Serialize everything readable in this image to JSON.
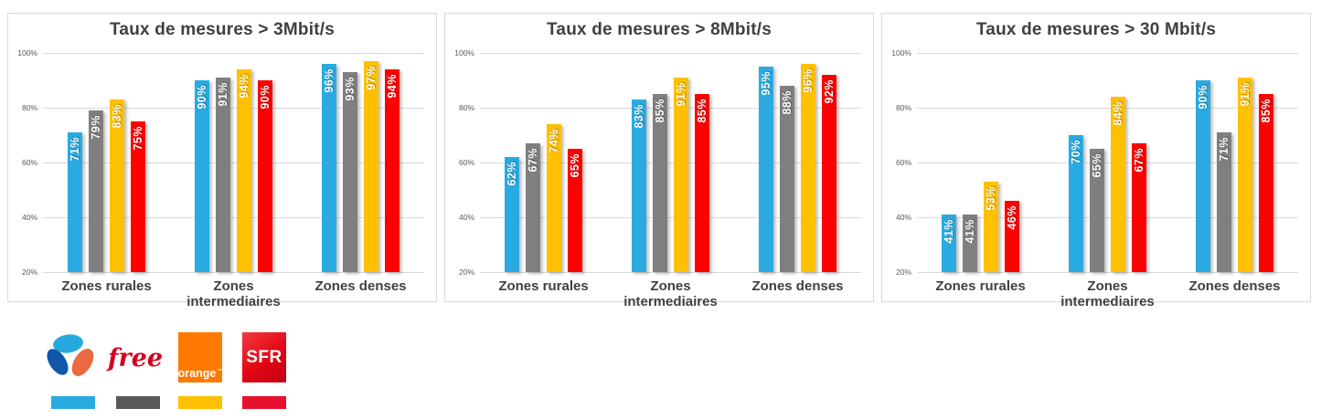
{
  "chart_data": [
    {
      "type": "bar",
      "title": "Taux de mesures > 3Mbit/s",
      "categories": [
        "Zones rurales",
        "Zones intermediaires",
        "Zones denses"
      ],
      "series": [
        {
          "name": "Bouygues Telecom",
          "color": "#29ABE2",
          "values": [
            71,
            90,
            96
          ]
        },
        {
          "name": "Free",
          "color": "#7F7F7F",
          "values": [
            79,
            91,
            93
          ]
        },
        {
          "name": "Orange",
          "color": "#FFC000",
          "values": [
            83,
            94,
            97
          ]
        },
        {
          "name": "SFR",
          "color": "#FE0000",
          "values": [
            75,
            90,
            94
          ]
        }
      ],
      "ylim": [
        20,
        100
      ],
      "y_ticks": [
        "100%",
        "80%",
        "60%",
        "40%",
        "20%"
      ],
      "grid": true,
      "data_label_format": "{value}%",
      "data_label_style": "white bold, rotated up, inside end"
    },
    {
      "type": "bar",
      "title": "Taux de mesures > 8Mbit/s",
      "categories": [
        "Zones rurales",
        "Zones intermediaires",
        "Zones denses"
      ],
      "series": [
        {
          "name": "Bouygues Telecom",
          "color": "#29ABE2",
          "values": [
            62,
            83,
            95
          ]
        },
        {
          "name": "Free",
          "color": "#7F7F7F",
          "values": [
            67,
            85,
            88
          ]
        },
        {
          "name": "Orange",
          "color": "#FFC000",
          "values": [
            74,
            91,
            96
          ]
        },
        {
          "name": "SFR",
          "color": "#FE0000",
          "values": [
            65,
            85,
            92
          ]
        }
      ],
      "ylim": [
        20,
        100
      ],
      "y_ticks": [
        "100%",
        "80%",
        "60%",
        "40%",
        "20%"
      ],
      "grid": true,
      "data_label_format": "{value}%",
      "data_label_style": "white bold, rotated up, inside end"
    },
    {
      "type": "bar",
      "title": "Taux de mesures > 30 Mbit/s",
      "categories": [
        "Zones rurales",
        "Zones intermediaires",
        "Zones denses"
      ],
      "series": [
        {
          "name": "Bouygues Telecom",
          "color": "#29ABE2",
          "values": [
            41,
            70,
            90
          ]
        },
        {
          "name": "Free",
          "color": "#7F7F7F",
          "values": [
            41,
            65,
            71
          ]
        },
        {
          "name": "Orange",
          "color": "#FFC000",
          "values": [
            53,
            84,
            91
          ]
        },
        {
          "name": "SFR",
          "color": "#FE0000",
          "values": [
            46,
            67,
            85
          ]
        }
      ],
      "ylim": [
        20,
        100
      ],
      "y_ticks": [
        "100%",
        "80%",
        "60%",
        "40%",
        "20%"
      ],
      "grid": true,
      "data_label_format": "{value}%",
      "data_label_style": "white bold, rotated up, inside end"
    }
  ],
  "legend": {
    "operators": [
      {
        "name": "Bouygues Telecom",
        "logo": "bouygues-petals-icon",
        "swatch_color": "#29ABE2",
        "logo_colors": {
          "top": "#25A9DD",
          "left": "#0F57A8",
          "right": "#E96A41"
        }
      },
      {
        "name": "Free",
        "logo_text": "free",
        "logo_color": "#D6001C",
        "swatch_color": "#595959"
      },
      {
        "name": "Orange",
        "logo_text": "orange",
        "logo_tm": "™",
        "logo_bg": "#FF7900",
        "swatch_color": "#FFC000"
      },
      {
        "name": "SFR",
        "logo_text": "SFR",
        "logo_bg": "#E30613",
        "swatch_color": "#E8112D"
      }
    ]
  },
  "colors": {
    "gridline": "#D9D9D9",
    "panel_border": "#D9D9D9",
    "title_text": "#404040",
    "axis_text": "#595959",
    "data_label_text": "#FFFFFF"
  }
}
